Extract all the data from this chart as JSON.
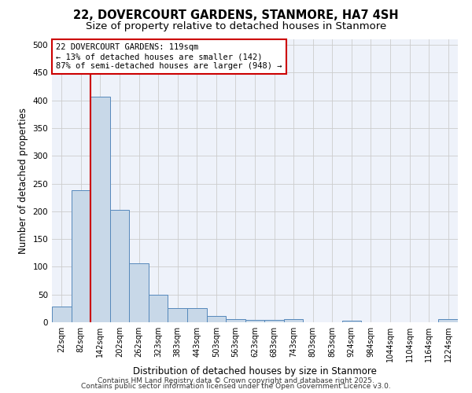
{
  "title": "22, DOVERCOURT GARDENS, STANMORE, HA7 4SH",
  "subtitle": "Size of property relative to detached houses in Stanmore",
  "xlabel": "Distribution of detached houses by size in Stanmore",
  "ylabel": "Number of detached properties",
  "bar_color": "#c8d8e8",
  "bar_edge_color": "#5588bb",
  "background_color": "#eef2fa",
  "grid_color": "#cccccc",
  "categories": [
    "22sqm",
    "82sqm",
    "142sqm",
    "202sqm",
    "262sqm",
    "323sqm",
    "383sqm",
    "443sqm",
    "503sqm",
    "563sqm",
    "623sqm",
    "683sqm",
    "743sqm",
    "803sqm",
    "863sqm",
    "924sqm",
    "984sqm",
    "1044sqm",
    "1104sqm",
    "1164sqm",
    "1224sqm"
  ],
  "values": [
    28,
    238,
    407,
    202,
    106,
    49,
    26,
    25,
    11,
    5,
    4,
    4,
    6,
    0,
    0,
    3,
    0,
    0,
    0,
    0,
    5
  ],
  "property_line_x": 1.5,
  "annotation_line1": "22 DOVERCOURT GARDENS: 119sqm",
  "annotation_line2": "← 13% of detached houses are smaller (142)",
  "annotation_line3": "87% of semi-detached houses are larger (948) →",
  "annotation_box_color": "#ffffff",
  "annotation_box_edge": "#cc0000",
  "red_line_color": "#cc0000",
  "footer1": "Contains HM Land Registry data © Crown copyright and database right 2025.",
  "footer2": "Contains public sector information licensed under the Open Government Licence v3.0.",
  "ylim": [
    0,
    510
  ],
  "title_fontsize": 10.5,
  "subtitle_fontsize": 9.5,
  "axis_label_fontsize": 8.5,
  "tick_fontsize": 7,
  "annotation_fontsize": 7.5,
  "footer_fontsize": 6.5
}
